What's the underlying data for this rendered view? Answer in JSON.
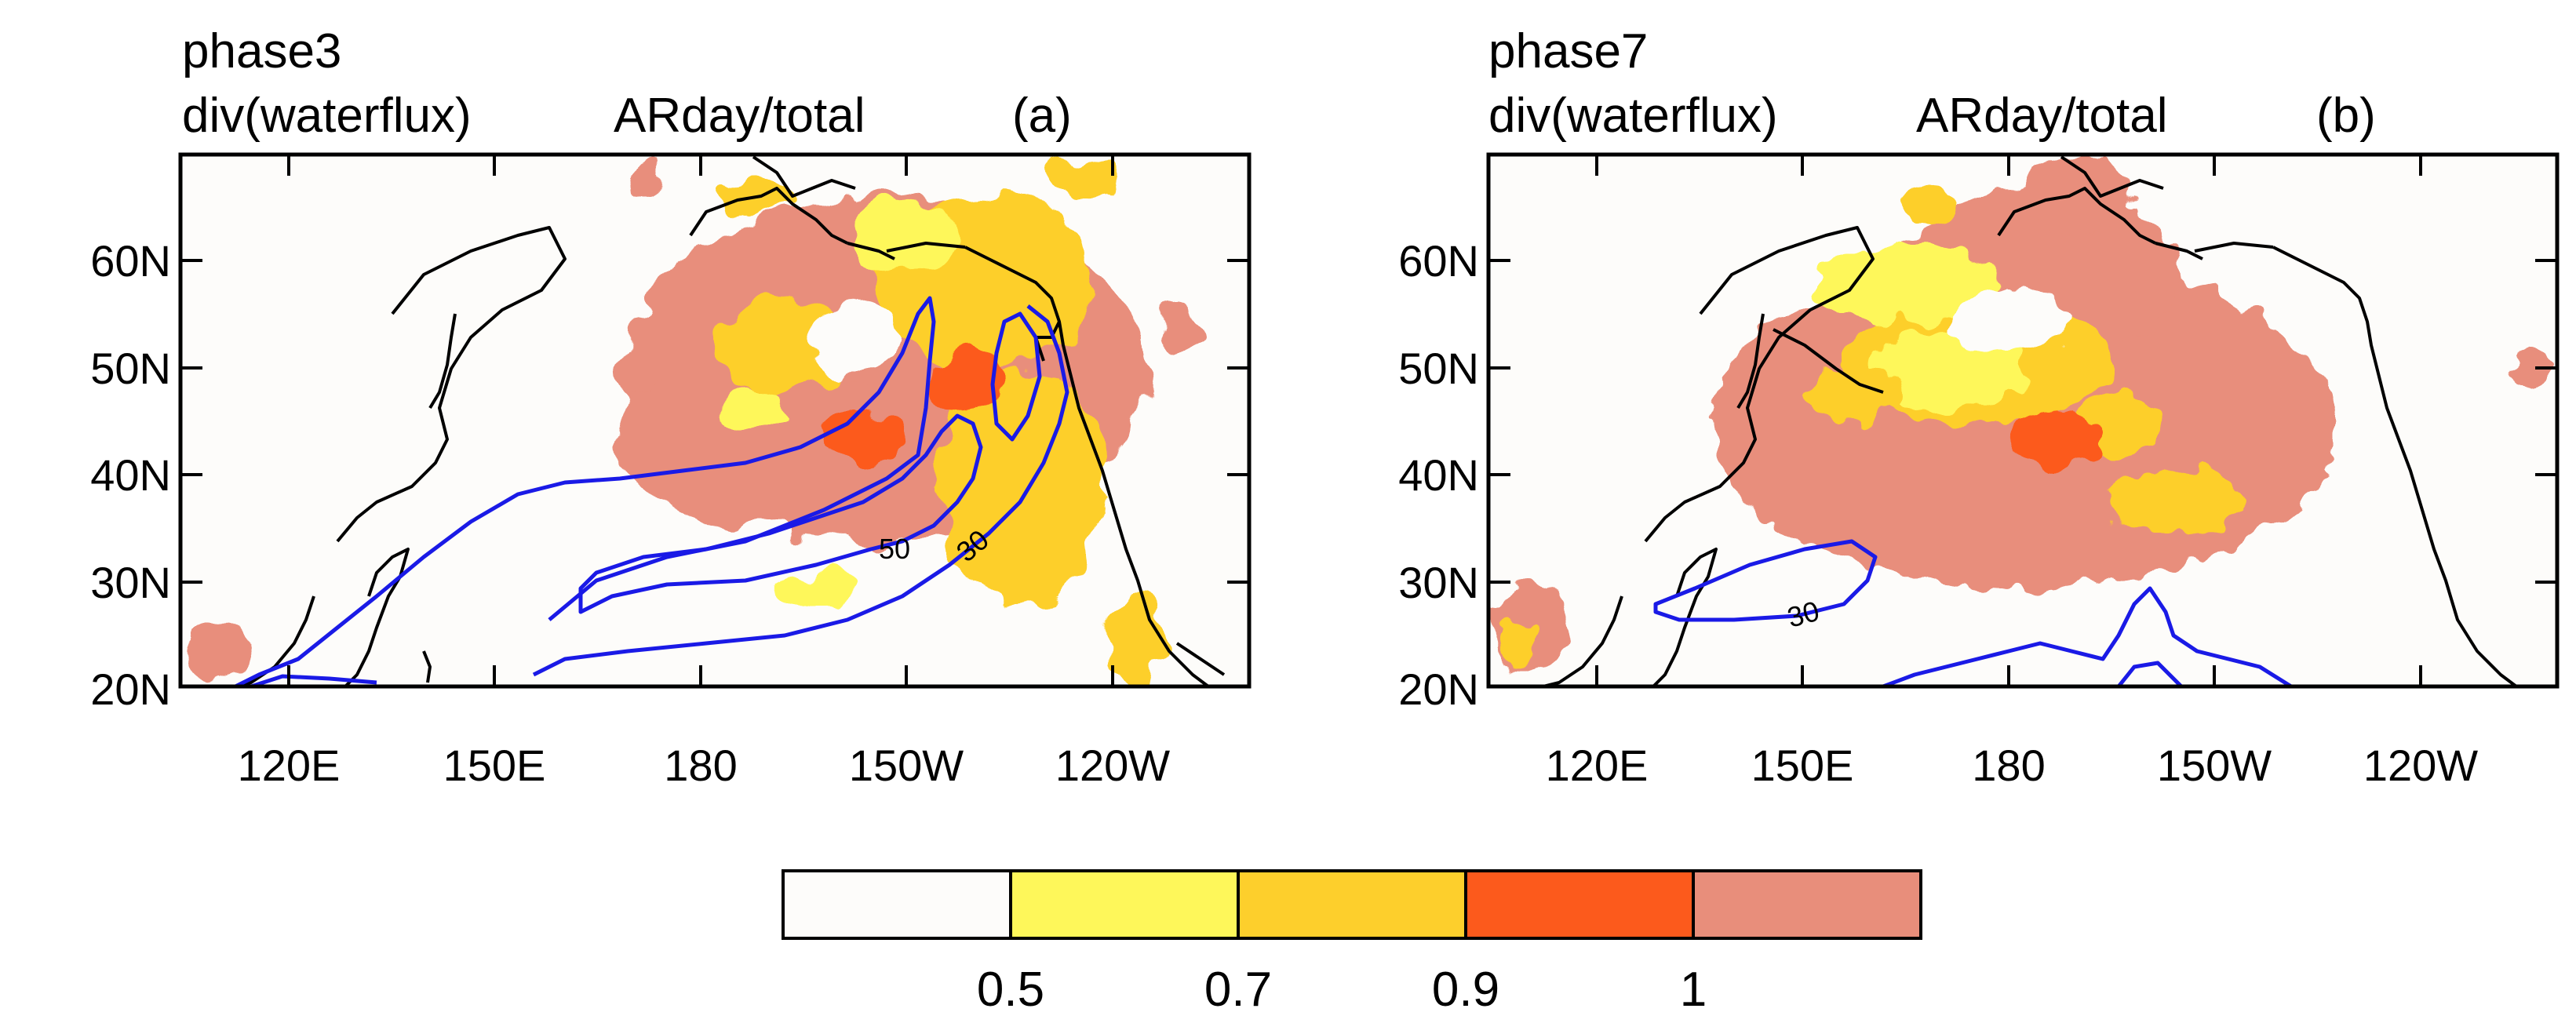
{
  "panels": [
    {
      "phase": "phase3",
      "field": "div(waterflux)",
      "variable": "ARday/total",
      "label": "(a)",
      "contour_labels": [
        "50",
        "30"
      ]
    },
    {
      "phase": "phase7",
      "field": "div(waterflux)",
      "variable": "ARday/total",
      "label": "(b)",
      "contour_labels": [
        "30"
      ]
    }
  ],
  "lat_ticks": [
    "60N",
    "50N",
    "40N",
    "30N",
    "20N"
  ],
  "lon_ticks": [
    "120E",
    "150E",
    "180",
    "150W",
    "120W"
  ],
  "colorbar": {
    "boundaries": [
      "0.5",
      "0.7",
      "0.9",
      "1"
    ],
    "colors": [
      "#fdfcfa",
      "#fef75a",
      "#fdcf2c",
      "#fc5a1c",
      "#e88e7b"
    ]
  },
  "contour_color": "#1a1ae6",
  "coast_color": "#000000"
}
